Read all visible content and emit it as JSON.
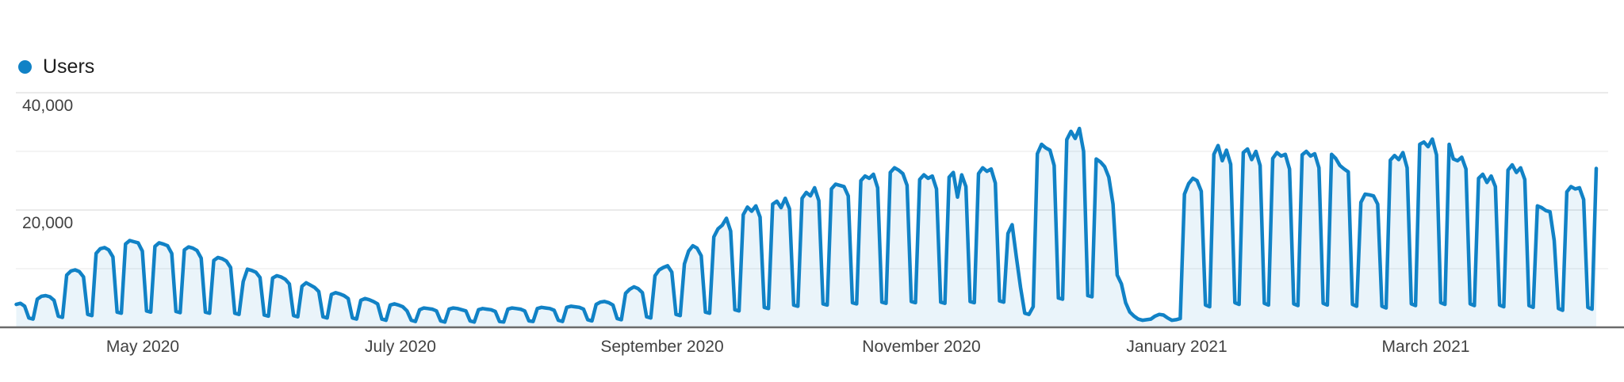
{
  "legend": {
    "label": "Users"
  },
  "colors": {
    "series_blue": "#1182c6",
    "area_fill": "rgba(17,130,198,0.09)",
    "grid_major": "#e3e3e3",
    "grid_minor": "#f0f0f0",
    "axis_baseline": "#6b6b6b",
    "tick_label": "#424242"
  },
  "chart_data": {
    "type": "area",
    "title": "Users over time (daily)",
    "series_name": "Users",
    "frequency": "daily",
    "date_start": "2020-04-01",
    "date_end": "2021-04-12",
    "legend_position": "top-left",
    "grid": "horizontal-only",
    "ylim": [
      0,
      45000
    ],
    "y_gridline_values": [
      40000,
      30000,
      20000,
      10000
    ],
    "y_ticks": [
      {
        "value": 40000,
        "label": "40,000"
      },
      {
        "value": 20000,
        "label": "20,000"
      }
    ],
    "x_tick_labels": [
      "May 2020",
      "July 2020",
      "September 2020",
      "November 2020",
      "January 2021",
      "March 2021"
    ],
    "values": [
      3900,
      4100,
      3600,
      1600,
      1400,
      4800,
      5300,
      5400,
      5200,
      4600,
      1900,
      1700,
      8900,
      9600,
      9800,
      9500,
      8600,
      2200,
      2000,
      12600,
      13400,
      13600,
      13200,
      12000,
      2600,
      2400,
      14200,
      14800,
      14600,
      14400,
      13000,
      2800,
      2600,
      13800,
      14400,
      14200,
      13900,
      12600,
      2700,
      2500,
      13200,
      13700,
      13500,
      13100,
      11800,
      2600,
      2400,
      11400,
      11900,
      11700,
      11300,
      10200,
      2400,
      2200,
      7800,
      9900,
      9700,
      9400,
      8500,
      2100,
      1900,
      8400,
      8800,
      8600,
      8200,
      7400,
      2000,
      1800,
      7000,
      7600,
      7200,
      6800,
      6100,
      1800,
      1600,
      5600,
      5900,
      5700,
      5400,
      4900,
      1600,
      1400,
      4600,
      4900,
      4700,
      4400,
      4000,
      1400,
      1200,
      3800,
      4000,
      3800,
      3500,
      2800,
      1200,
      1000,
      3000,
      3300,
      3200,
      3100,
      2800,
      1100,
      900,
      3100,
      3300,
      3200,
      3000,
      2800,
      1100,
      900,
      3000,
      3200,
      3100,
      3000,
      2700,
      1000,
      900,
      3100,
      3300,
      3200,
      3100,
      2800,
      1100,
      1000,
      3200,
      3400,
      3300,
      3200,
      2900,
      1200,
      1000,
      3400,
      3600,
      3500,
      3400,
      3100,
      1300,
      1100,
      3900,
      4300,
      4400,
      4200,
      3800,
      1500,
      1300,
      5800,
      6500,
      6900,
      6600,
      5900,
      1800,
      1600,
      8800,
      9800,
      10200,
      10500,
      9400,
      2200,
      2000,
      10800,
      13000,
      13900,
      13500,
      12200,
      2600,
      2400,
      15400,
      16800,
      17400,
      18600,
      16400,
      3000,
      2800,
      19200,
      20500,
      19800,
      20700,
      18800,
      3400,
      3200,
      21000,
      21500,
      20400,
      22000,
      20200,
      3800,
      3600,
      22000,
      23000,
      22400,
      23800,
      21600,
      4000,
      3800,
      23600,
      24400,
      24200,
      24000,
      22400,
      4200,
      4000,
      25000,
      25800,
      25400,
      26100,
      23800,
      4300,
      4100,
      26400,
      27200,
      26800,
      26200,
      24200,
      4400,
      4200,
      25200,
      26000,
      25400,
      25800,
      23600,
      4300,
      4100,
      25600,
      26400,
      22200,
      26000,
      24000,
      4400,
      4200,
      26200,
      27200,
      26600,
      27000,
      24600,
      4500,
      4300,
      16000,
      17500,
      12000,
      6800,
      2400,
      2200,
      3500,
      29600,
      31200,
      30600,
      30200,
      27600,
      5000,
      4800,
      32000,
      33400,
      32200,
      33900,
      30000,
      5400,
      5200,
      28700,
      28200,
      27400,
      25600,
      21000,
      8900,
      7400,
      4200,
      2600,
      1900,
      1400,
      1200,
      1300,
      1400,
      1900,
      2200,
      2100,
      1600,
      1200,
      1300,
      1500,
      22700,
      24500,
      25400,
      25000,
      23200,
      3800,
      3500,
      29500,
      31000,
      28400,
      30200,
      27800,
      4200,
      3900,
      29800,
      30400,
      28600,
      30000,
      27600,
      4100,
      3800,
      28800,
      29800,
      29200,
      29500,
      27000,
      4000,
      3700,
      29400,
      30000,
      29200,
      29600,
      27200,
      4100,
      3800,
      29500,
      28800,
      27600,
      27000,
      26500,
      3900,
      3600,
      21300,
      22700,
      22600,
      22400,
      21000,
      3600,
      3300,
      28500,
      29300,
      28600,
      29800,
      27200,
      4000,
      3700,
      31200,
      31600,
      30800,
      32100,
      29400,
      4200,
      3900,
      31200,
      28700,
      28400,
      29000,
      27000,
      4000,
      3700,
      25400,
      26100,
      24700,
      25800,
      24000,
      3800,
      3500,
      26800,
      27700,
      26400,
      27200,
      25200,
      3700,
      3400,
      20700,
      20400,
      19900,
      19700,
      14800,
      3200,
      2900,
      23100,
      24000,
      23600,
      23800,
      21800,
      3400,
      3100,
      27100
    ]
  }
}
